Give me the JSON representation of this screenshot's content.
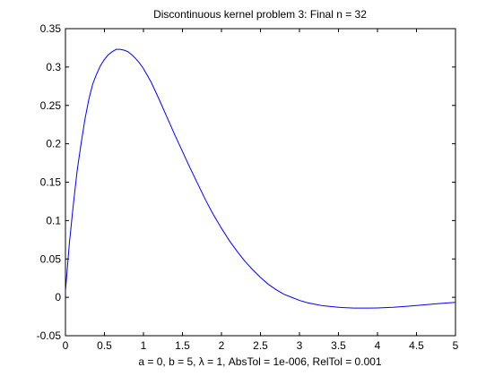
{
  "chart_data": {
    "type": "line",
    "title": "Discontinuous kernel problem 3:   Final n = 32",
    "xlabel": "a = 0,   b = 5,   λ = 1,   AbsTol = 1e-006,   RelTol = 0.001",
    "ylabel": "",
    "xlim": [
      0,
      5
    ],
    "ylim": [
      -0.05,
      0.35
    ],
    "xticks": [
      0,
      0.5,
      1,
      1.5,
      2,
      2.5,
      3,
      3.5,
      4,
      4.5,
      5
    ],
    "xtick_labels": [
      "0",
      "0.5",
      "1",
      "1.5",
      "2",
      "2.5",
      "3",
      "3.5",
      "4",
      "4.5",
      "5"
    ],
    "yticks": [
      -0.05,
      0,
      0.05,
      0.1,
      0.15,
      0.2,
      0.25,
      0.3,
      0.35
    ],
    "ytick_labels": [
      "-0.05",
      "0",
      "0.05",
      "0.1",
      "0.15",
      "0.2",
      "0.25",
      "0.3",
      "0.35"
    ],
    "grid": false,
    "line_color": "#0000ff",
    "series": [
      {
        "x": [
          0,
          0.05,
          0.1,
          0.15,
          0.2,
          0.25,
          0.3,
          0.35,
          0.4,
          0.45,
          0.5,
          0.55,
          0.6,
          0.65,
          0.7,
          0.75,
          0.8,
          0.85,
          0.9,
          0.95,
          1.0,
          1.1,
          1.2,
          1.3,
          1.4,
          1.5,
          1.6,
          1.7,
          1.8,
          1.9,
          2.0,
          2.1,
          2.2,
          2.3,
          2.4,
          2.5,
          2.6,
          2.7,
          2.8,
          2.9,
          3.0,
          3.1,
          3.2,
          3.3,
          3.4,
          3.5,
          3.6,
          3.7,
          3.8,
          3.9,
          4.0,
          4.2,
          4.4,
          4.6,
          4.8,
          5.0
        ],
        "y": [
          0.008,
          0.07,
          0.12,
          0.165,
          0.2,
          0.232,
          0.258,
          0.278,
          0.291,
          0.302,
          0.31,
          0.316,
          0.32,
          0.323,
          0.323,
          0.322,
          0.32,
          0.316,
          0.311,
          0.305,
          0.298,
          0.28,
          0.258,
          0.235,
          0.212,
          0.19,
          0.168,
          0.147,
          0.126,
          0.107,
          0.09,
          0.074,
          0.06,
          0.047,
          0.036,
          0.026,
          0.017,
          0.01,
          0.004,
          0.0,
          -0.004,
          -0.007,
          -0.009,
          -0.011,
          -0.012,
          -0.013,
          -0.0135,
          -0.014,
          -0.014,
          -0.014,
          -0.0138,
          -0.013,
          -0.0115,
          -0.0098,
          -0.008,
          -0.0065
        ]
      }
    ]
  }
}
